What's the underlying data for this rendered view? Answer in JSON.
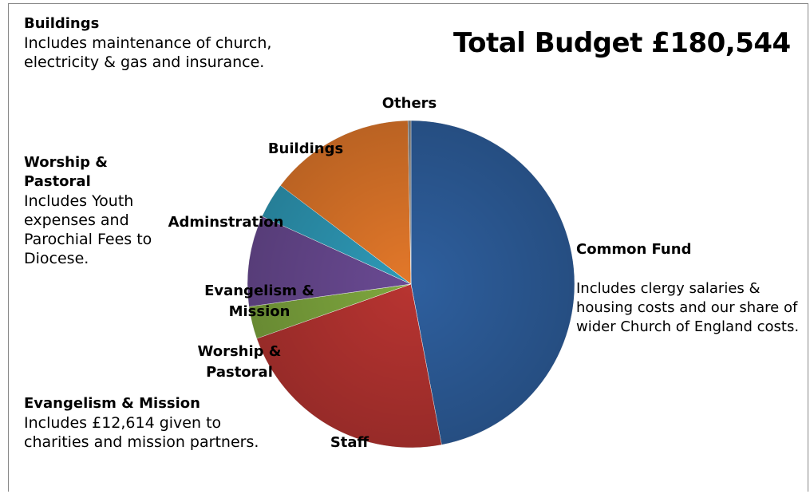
{
  "title": "Total Budget £180,544",
  "notes": [
    {
      "id": "buildings",
      "heading": "Buildings",
      "text": "Includes maintenance of church, electricity & gas and insurance."
    },
    {
      "id": "worship",
      "heading": "Worship & Pastoral",
      "text": "Includes Youth expenses and Parochial Fees to Diocese."
    },
    {
      "id": "evangelism",
      "heading": "Evangelism & Mission",
      "text": "Includes £12,614 given to charities and mission partners."
    }
  ],
  "common_fund_label": "Common Fund",
  "common_fund_desc": "Includes clergy salaries & housing costs and our share of wider Church of England costs.",
  "chart_data": {
    "type": "pie",
    "title": "Total Budget £180,544",
    "slices": [
      {
        "label": "Common Fund",
        "value": 47.0,
        "color": "#2E5F9E"
      },
      {
        "label": "Staff",
        "value": 22.6,
        "color": "#B83431"
      },
      {
        "label": "Worship & Pastoral",
        "value": 3.2,
        "color": "#7FA83E"
      },
      {
        "label": "Evangelism & Mission",
        "value": 9.0,
        "color": "#6A4A93"
      },
      {
        "label": "Adminstration",
        "value": 3.5,
        "color": "#2E9AB8"
      },
      {
        "label": "Buildings",
        "value": 14.4,
        "color": "#E3782A"
      },
      {
        "label": "Others",
        "value": 0.3,
        "color": "#8A8A8A"
      }
    ]
  }
}
